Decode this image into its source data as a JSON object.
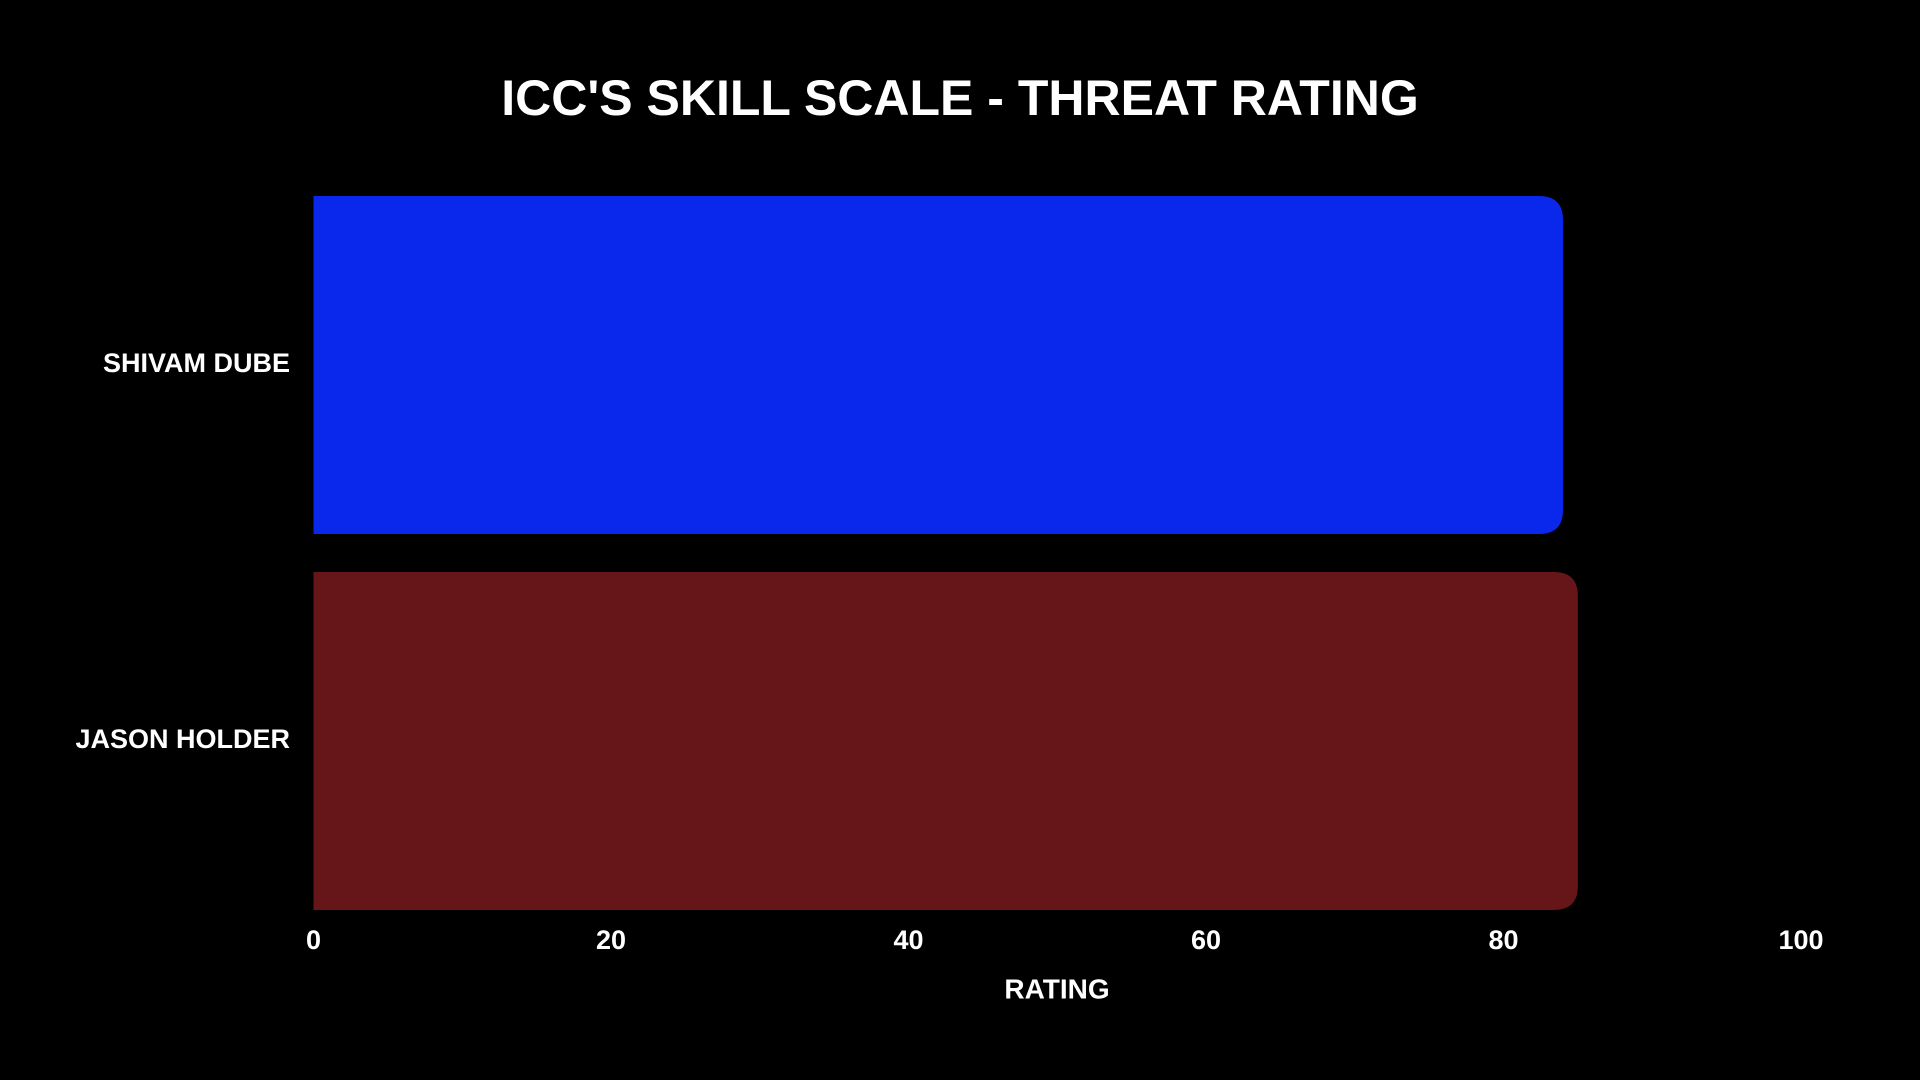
{
  "chart_data": {
    "type": "bar",
    "orientation": "horizontal",
    "title": "ICC'S SKILL SCALE - THREAT RATING",
    "categories": [
      "SHIVAM DUBE",
      "JASON HOLDER"
    ],
    "values": [
      84,
      85
    ],
    "colors": [
      "#0a28ec",
      "#661619"
    ],
    "xlabel": "RATING",
    "xlim": [
      0,
      100
    ],
    "xticks": [
      0,
      20,
      40,
      60,
      80,
      100
    ],
    "grid": false
  }
}
